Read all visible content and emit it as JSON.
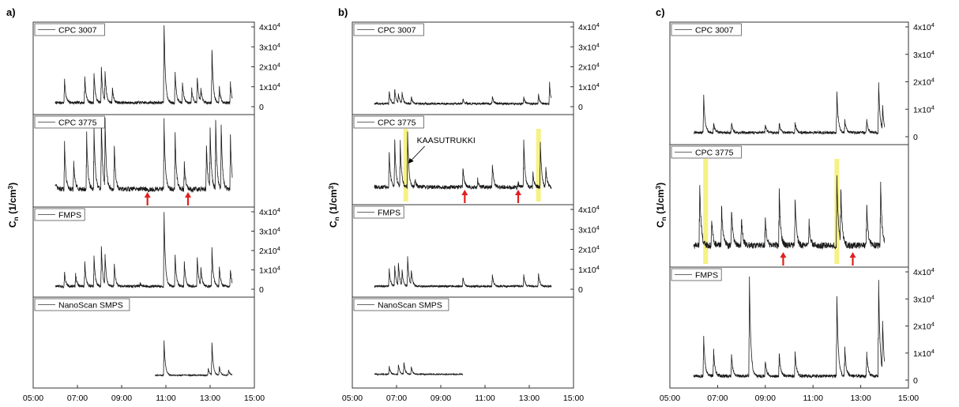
{
  "colors": {
    "trace": "#1a1a1a",
    "highlight": "#f5ee70",
    "arrow": "#e02020",
    "frame": "#333333"
  },
  "y_tick_labels": [
    "0",
    "1x10",
    "2x10",
    "3x10",
    "4x10"
  ],
  "y_tick_exponent": "4",
  "ylabel_main": "C",
  "ylabel_sub": "n",
  "ylabel_unit_open": " (1/cm",
  "ylabel_unit_exp": "3",
  "ylabel_unit_close": ")",
  "chart_data": [
    {
      "id": "a",
      "label": "a)",
      "type": "line",
      "xlabel": "",
      "ylabel": "C_n (1/cm^3)",
      "x_ticks": [
        "05:00",
        "07:00",
        "09:00",
        "11:00",
        "13:00",
        "15:00"
      ],
      "xlim": [
        "05:00",
        "15:00"
      ],
      "panels": [
        {
          "name": "CPC 3007",
          "ylim": [
            0,
            40000
          ],
          "y_tick_values": [
            0,
            10000,
            20000,
            30000,
            40000
          ],
          "show_ticks": true,
          "baseline": 2000,
          "noise": 700,
          "spikes": [
            [
              "06:25",
              14000
            ],
            [
              "07:20",
              15000
            ],
            [
              "07:45",
              17000
            ],
            [
              "08:05",
              20000
            ],
            [
              "08:15",
              17000
            ],
            [
              "08:35",
              9000
            ],
            [
              "09:50",
              2000
            ],
            [
              "10:55",
              44000
            ],
            [
              "11:25",
              18000
            ],
            [
              "11:45",
              12000
            ],
            [
              "12:10",
              9000
            ],
            [
              "12:25",
              15000
            ],
            [
              "12:35",
              8000
            ],
            [
              "13:05",
              29000
            ],
            [
              "13:25",
              10000
            ],
            [
              "13:55",
              12000
            ]
          ]
        },
        {
          "name": "CPC 3775",
          "ylim": [
            0,
            40000
          ],
          "y_tick_values": [],
          "show_ticks": false,
          "baseline": 5000,
          "noise": 1200,
          "spikes": [
            [
              "06:00",
              8000
            ],
            [
              "06:25",
              28000
            ],
            [
              "06:50",
              18000
            ],
            [
              "07:25",
              33000
            ],
            [
              "07:45",
              36000
            ],
            [
              "08:05",
              40000
            ],
            [
              "08:15",
              38000
            ],
            [
              "08:40",
              27000
            ],
            [
              "10:10",
              4000
            ],
            [
              "10:55",
              40000
            ],
            [
              "11:25",
              33000
            ],
            [
              "11:50",
              18000
            ],
            [
              "12:10",
              4000
            ],
            [
              "12:50",
              28000
            ],
            [
              "13:00",
              35000
            ],
            [
              "13:15",
              40000
            ],
            [
              "13:30",
              38000
            ],
            [
              "13:55",
              32000
            ]
          ],
          "arrows": [
            "10:10",
            "12:00"
          ]
        },
        {
          "name": "FMPS",
          "ylim": [
            0,
            40000
          ],
          "y_tick_values": [
            0,
            10000,
            20000,
            30000,
            40000
          ],
          "show_ticks": true,
          "baseline": 1500,
          "noise": 700,
          "spikes": [
            [
              "06:25",
              9000
            ],
            [
              "06:55",
              8000
            ],
            [
              "07:20",
              14000
            ],
            [
              "07:45",
              17000
            ],
            [
              "08:05",
              22000
            ],
            [
              "08:15",
              17000
            ],
            [
              "08:40",
              13000
            ],
            [
              "09:50",
              3000
            ],
            [
              "10:55",
              40000
            ],
            [
              "11:25",
              18000
            ],
            [
              "11:50",
              14000
            ],
            [
              "12:25",
              17000
            ],
            [
              "12:35",
              10000
            ],
            [
              "13:05",
              21000
            ],
            [
              "13:25",
              12000
            ],
            [
              "13:55",
              10000
            ]
          ]
        },
        {
          "name": "NanoScan SMPS",
          "ylim": [
            0,
            40000
          ],
          "y_tick_values": [],
          "show_ticks": false,
          "x_start": "10:30",
          "x_end": "14:00",
          "baseline": 2500,
          "noise": 300,
          "spikes": [
            [
              "10:55",
              20000
            ],
            [
              "12:55",
              6000
            ],
            [
              "13:05",
              19000
            ],
            [
              "13:25",
              7000
            ],
            [
              "13:50",
              5000
            ]
          ]
        }
      ]
    },
    {
      "id": "b",
      "label": "b)",
      "type": "line",
      "xlabel": "",
      "ylabel": "C_n (1/cm^3)",
      "x_ticks": [
        "05:00",
        "07:00",
        "09:00",
        "11:00",
        "13:00",
        "15:00"
      ],
      "xlim": [
        "05:00",
        "15:00"
      ],
      "panels": [
        {
          "name": "CPC 3007",
          "ylim": [
            0,
            40000
          ],
          "y_tick_values": [
            0,
            10000,
            20000,
            30000,
            40000
          ],
          "show_ticks": true,
          "baseline": 1500,
          "noise": 500,
          "spikes": [
            [
              "06:40",
              8000
            ],
            [
              "06:55",
              9000
            ],
            [
              "07:05",
              6000
            ],
            [
              "07:15",
              7000
            ],
            [
              "07:40",
              5000
            ],
            [
              "10:00",
              4000
            ],
            [
              "11:20",
              5000
            ],
            [
              "12:45",
              5000
            ],
            [
              "13:25",
              6000
            ],
            [
              "13:55",
              12000
            ]
          ]
        },
        {
          "name": "CPC 3775",
          "ylim": [
            0,
            40000
          ],
          "y_tick_values": [],
          "show_ticks": false,
          "baseline": 5000,
          "noise": 1000,
          "spikes": [
            [
              "06:40",
              24000
            ],
            [
              "06:55",
              30000
            ],
            [
              "07:10",
              28000
            ],
            [
              "07:30",
              33000
            ],
            [
              "07:50",
              9000
            ],
            [
              "10:00",
              15000
            ],
            [
              "10:40",
              9000
            ],
            [
              "11:20",
              17000
            ],
            [
              "12:30",
              7000
            ],
            [
              "12:45",
              30000
            ],
            [
              "13:10",
              13000
            ],
            [
              "13:30",
              29000
            ],
            [
              "13:45",
              15000
            ]
          ],
          "highlights": [
            "07:25",
            "13:25"
          ],
          "arrows": [
            "10:05",
            "12:30"
          ],
          "annotation": {
            "text": "KAASUTRUKKI",
            "x": "07:25",
            "value": 33000
          }
        },
        {
          "name": "FMPS",
          "ylim": [
            0,
            40000
          ],
          "y_tick_values": [
            0,
            10000,
            20000,
            30000,
            40000
          ],
          "show_ticks": true,
          "baseline": 1500,
          "noise": 500,
          "spikes": [
            [
              "06:40",
              10000
            ],
            [
              "06:55",
              12000
            ],
            [
              "07:05",
              13000
            ],
            [
              "07:15",
              9000
            ],
            [
              "07:30",
              16000
            ],
            [
              "07:40",
              9000
            ],
            [
              "10:00",
              6000
            ],
            [
              "11:20",
              7000
            ],
            [
              "12:45",
              7000
            ],
            [
              "13:25",
              8000
            ]
          ]
        },
        {
          "name": "NanoScan SMPS",
          "ylim": [
            0,
            40000
          ],
          "y_tick_values": [],
          "show_ticks": false,
          "x_end": "10:00",
          "baseline": 3000,
          "noise": 300,
          "spikes": [
            [
              "06:40",
              7000
            ],
            [
              "07:05",
              8000
            ],
            [
              "07:20",
              9000
            ],
            [
              "07:40",
              7000
            ]
          ]
        }
      ]
    },
    {
      "id": "c",
      "label": "c)",
      "type": "line",
      "xlabel": "",
      "ylabel": "C_n (1/cm^3)",
      "x_ticks": [
        "05:00",
        "07:00",
        "09:00",
        "11:00",
        "13:00",
        "15:00"
      ],
      "xlim": [
        "05:00",
        "15:00"
      ],
      "panels": [
        {
          "name": "CPC 3007",
          "ylim": [
            0,
            40000
          ],
          "y_tick_values": [
            0,
            10000,
            20000,
            30000,
            40000
          ],
          "show_ticks": true,
          "baseline": 1500,
          "noise": 500,
          "spikes": [
            [
              "06:25",
              15000
            ],
            [
              "06:50",
              5000
            ],
            [
              "07:35",
              5000
            ],
            [
              "09:00",
              4000
            ],
            [
              "09:35",
              5000
            ],
            [
              "10:15",
              5000
            ],
            [
              "12:00",
              16000
            ],
            [
              "12:20",
              6000
            ],
            [
              "13:15",
              6000
            ],
            [
              "13:45",
              20000
            ],
            [
              "13:55",
              10000
            ]
          ]
        },
        {
          "name": "CPC 3775",
          "ylim": [
            0,
            40000
          ],
          "y_tick_values": [],
          "show_ticks": false,
          "baseline": 5000,
          "noise": 1200,
          "spikes": [
            [
              "06:15",
              28000
            ],
            [
              "06:45",
              15000
            ],
            [
              "07:10",
              20000
            ],
            [
              "07:35",
              18000
            ],
            [
              "08:00",
              15000
            ],
            [
              "09:00",
              15000
            ],
            [
              "09:35",
              25000
            ],
            [
              "10:15",
              22000
            ],
            [
              "10:50",
              14000
            ],
            [
              "12:00",
              30000
            ],
            [
              "12:10",
              25000
            ],
            [
              "13:15",
              20000
            ],
            [
              "13:50",
              28000
            ]
          ],
          "highlights": [
            "06:30",
            "12:00"
          ],
          "arrows": [
            "09:45",
            "12:40"
          ]
        },
        {
          "name": "FMPS",
          "ylim": [
            0,
            40000
          ],
          "y_tick_values": [
            0,
            10000,
            20000,
            30000,
            40000
          ],
          "show_ticks": true,
          "baseline": 1500,
          "noise": 600,
          "spikes": [
            [
              "06:25",
              16000
            ],
            [
              "06:50",
              11000
            ],
            [
              "07:35",
              9000
            ],
            [
              "08:20",
              38000
            ],
            [
              "09:00",
              7000
            ],
            [
              "09:35",
              10000
            ],
            [
              "10:15",
              10000
            ],
            [
              "12:00",
              31000
            ],
            [
              "12:20",
              12000
            ],
            [
              "13:15",
              10000
            ],
            [
              "13:45",
              37000
            ],
            [
              "13:55",
              20000
            ]
          ]
        }
      ]
    }
  ]
}
